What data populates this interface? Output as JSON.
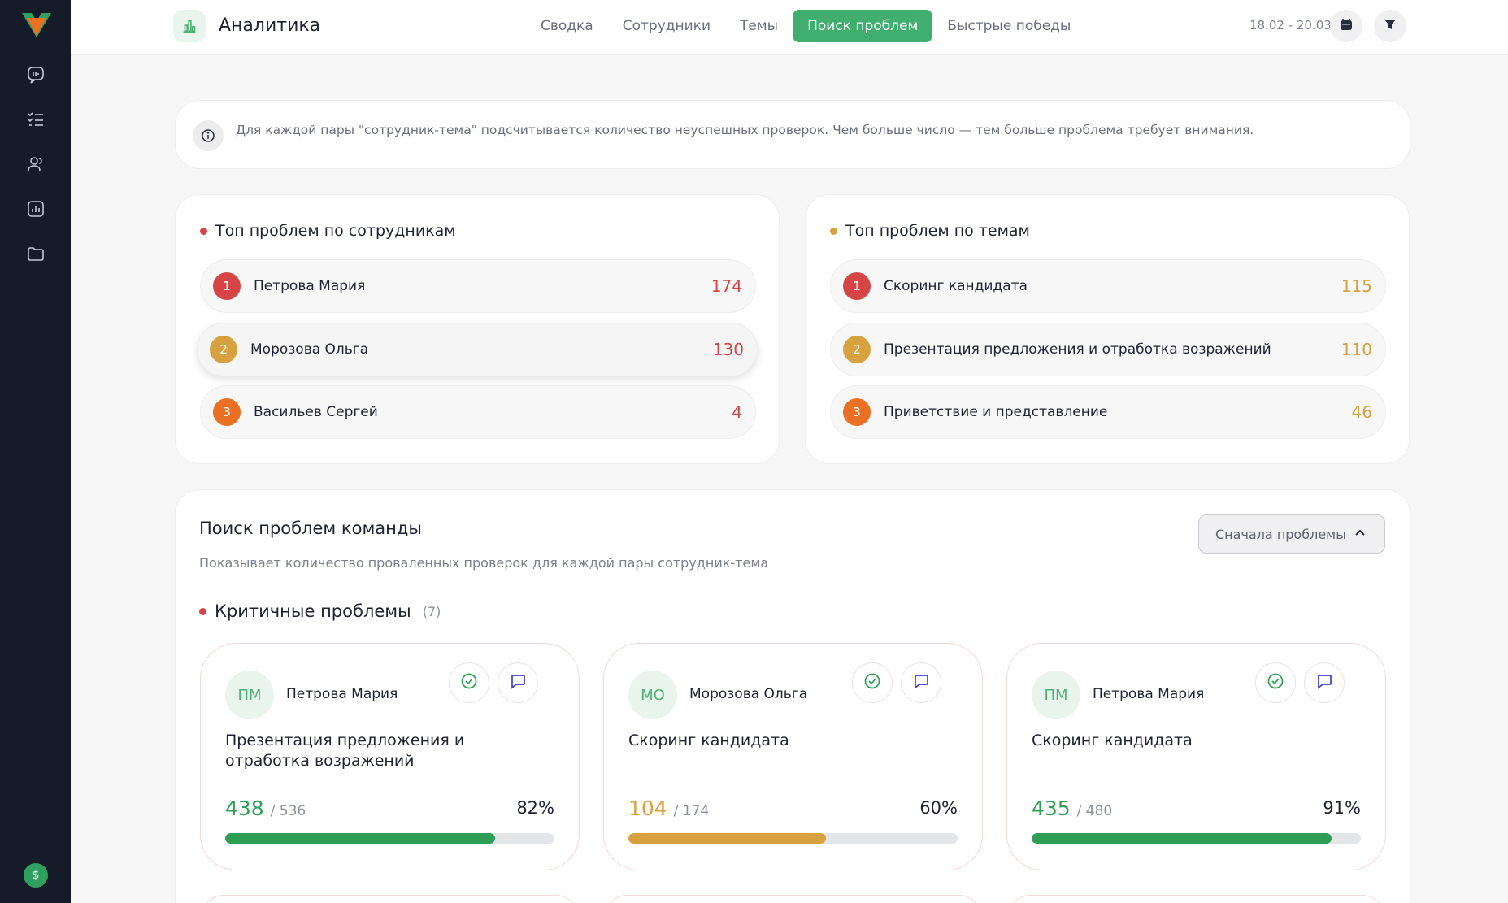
{
  "sidebar": {
    "logo": "logo-icon",
    "items": [
      {
        "icon": "chat-analytics-icon"
      },
      {
        "icon": "checklist-icon"
      },
      {
        "icon": "users-icon"
      },
      {
        "icon": "chart-icon"
      },
      {
        "icon": "folder-icon"
      }
    ],
    "avatar_glyph": "$"
  },
  "header": {
    "title": "Аналитика",
    "tabs": [
      {
        "label": "Сводка",
        "active": false
      },
      {
        "label": "Сотрудники",
        "active": false
      },
      {
        "label": "Темы",
        "active": false
      },
      {
        "label": "Поиск проблем",
        "active": true
      },
      {
        "label": "Быстрые победы",
        "active": false
      }
    ],
    "date_range": "18.02 - 20.03"
  },
  "info": {
    "text": "Для каждой пары \"сотрудник-тема\" подсчитывается количество неуспешных проверок. Чем больше число — тем больше проблема требует внимания."
  },
  "top_employees": {
    "title": "Топ проблем по сотрудникам",
    "rows": [
      {
        "rank": "1",
        "name": "Петрова Мария",
        "count": "174"
      },
      {
        "rank": "2",
        "name": "Морозова Ольга",
        "count": "130"
      },
      {
        "rank": "3",
        "name": "Васильев Сергей",
        "count": "4"
      }
    ]
  },
  "top_topics": {
    "title": "Топ проблем по темам",
    "rows": [
      {
        "rank": "1",
        "name": "Скоринг кандидата",
        "count": "115"
      },
      {
        "rank": "2",
        "name": "Презентация предложения и отработка возражений",
        "count": "110"
      },
      {
        "rank": "3",
        "name": "Приветствие и представление",
        "count": "46"
      }
    ]
  },
  "team": {
    "title": "Поиск проблем команды",
    "subtitle": "Показывает количество проваленных проверок для каждой пары сотрудник-тема",
    "sort_label": "Сначала проблемы",
    "critical_title": "Критичные проблемы",
    "critical_count": "(7)",
    "cards": [
      {
        "initials": "ПМ",
        "name": "Петрова Мария",
        "topic": "Презентация предложения и отработка возражений",
        "value": "438",
        "total": "/ 536",
        "percent": "82%",
        "progress": 0.82,
        "color": "#2e9e55"
      },
      {
        "initials": "МО",
        "name": "Морозова Ольга",
        "topic": "Скоринг кандидата",
        "value": "104",
        "total": "/ 174",
        "percent": "60%",
        "progress": 0.6,
        "color": "#d8a13f"
      },
      {
        "initials": "ПМ",
        "name": "Петрова Мария",
        "topic": "Скоринг кандидата",
        "value": "435",
        "total": "/ 480",
        "percent": "91%",
        "progress": 0.91,
        "color": "#2e9e55"
      }
    ]
  },
  "colors": {
    "accent": "#3fae6f",
    "rank1": "#d64545",
    "rank2": "#d8a13f",
    "rank3": "#ea7024",
    "red_count": "#d64545",
    "gold_count": "#d8a13f"
  }
}
